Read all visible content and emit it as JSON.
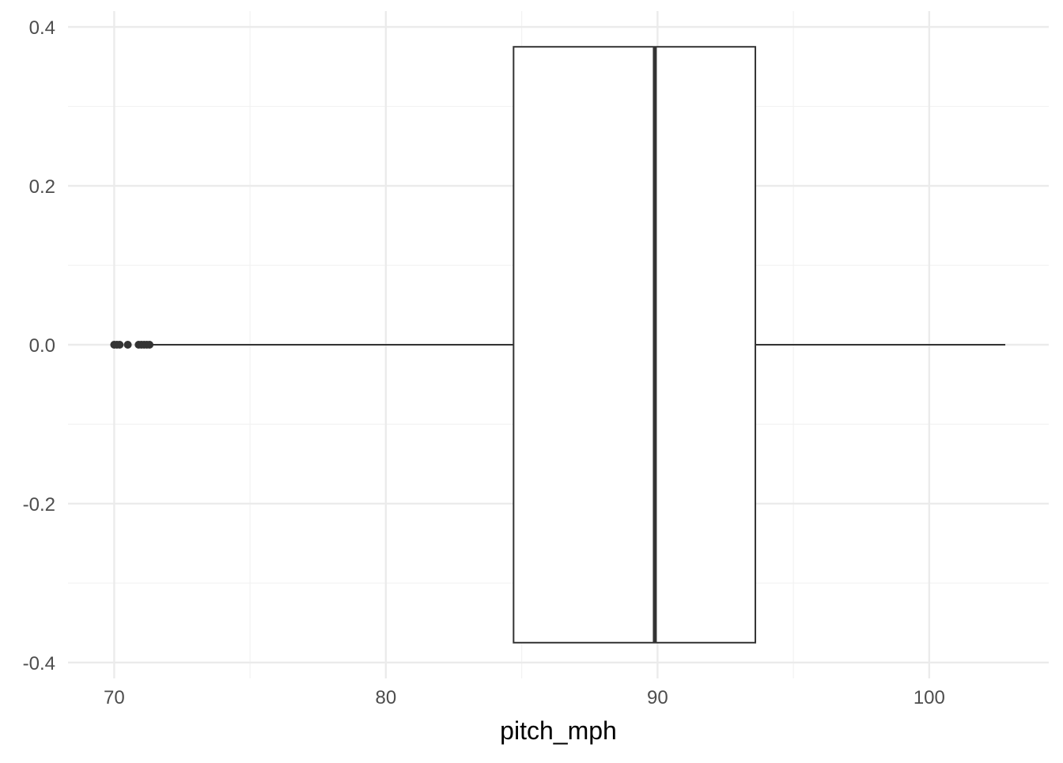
{
  "chart_data": {
    "type": "boxplot",
    "title": "",
    "xlabel": "pitch_mph",
    "ylabel": "",
    "xlim": [
      68.3,
      104.4
    ],
    "ylim": [
      -0.4,
      0.4
    ],
    "x_ticks": [
      70,
      80,
      90,
      100
    ],
    "x_tick_labels": [
      "70",
      "80",
      "90",
      "100"
    ],
    "y_ticks": [
      -0.4,
      -0.2,
      0.0,
      0.2,
      0.4
    ],
    "y_tick_labels": [
      "-0.4",
      "-0.2",
      "0.0",
      "0.2",
      "0.4"
    ],
    "x_minor_ticks": [
      75,
      85,
      95
    ],
    "y_minor_ticks": [
      -0.3,
      -0.1,
      0.1,
      0.3
    ],
    "grid": true,
    "legend": "none",
    "box": {
      "y_center": 0.0,
      "half_width": 0.375,
      "lower_whisker": 84.7,
      "q1": 84.7,
      "median": 89.9,
      "q3": 93.6,
      "upper_whisker": 102.8,
      "outliers": [
        70.0,
        70.1,
        70.2,
        70.5,
        70.9,
        71.0,
        71.1,
        71.2,
        71.3
      ]
    },
    "colors": {
      "grid_major": "#ebebeb",
      "grid_minor": "#f2f2f2",
      "box_stroke": "#333333",
      "box_fill": "#ffffff",
      "tick_text": "#4d4d4d",
      "title_text": "#000000"
    }
  }
}
